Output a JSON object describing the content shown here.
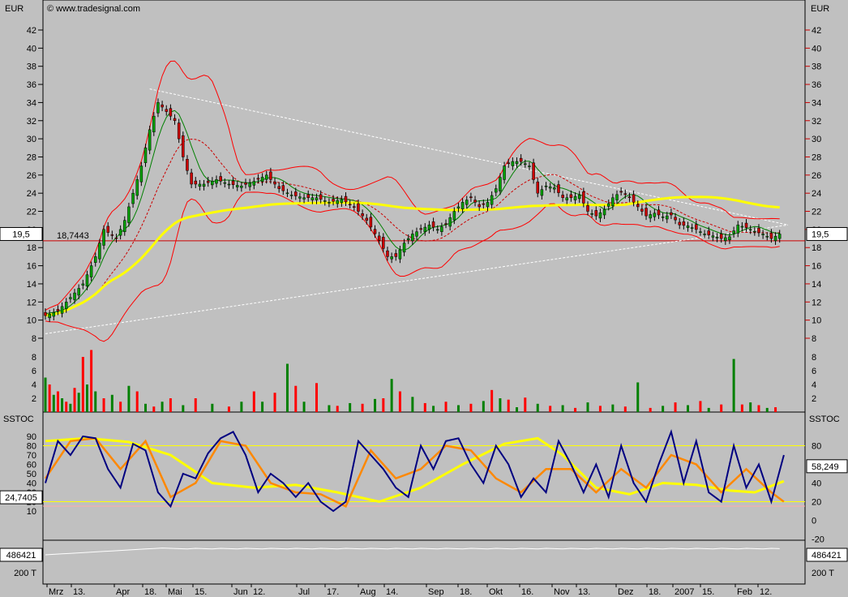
{
  "chart_data": {
    "type": "candlestick",
    "currency": "EUR",
    "watermark": "© www.tradesignal.com",
    "price_axis": {
      "ylim": [
        6,
        44
      ],
      "ticks": [
        8,
        10,
        12,
        14,
        16,
        18,
        20,
        22,
        24,
        26,
        28,
        30,
        32,
        34,
        36,
        38,
        40,
        42
      ],
      "current_label": "19,5",
      "support_label": "18,7443",
      "support_value": 18.7443
    },
    "volume_axis": {
      "ylim": [
        0,
        9
      ],
      "ticks": [
        2,
        4,
        6,
        8
      ]
    },
    "stoch": {
      "name": "SSTOC",
      "ylim": [
        -20,
        100
      ],
      "ticks_left": [
        10,
        20,
        30,
        40,
        50,
        60,
        70,
        80,
        90
      ],
      "ticks_right": [
        0,
        20,
        40,
        60,
        80
      ],
      "ticks_right_neg": "-20",
      "current_label": "58,249",
      "level_label": "24,7405",
      "upper_line": 80,
      "lower_line": 20
    },
    "bottom": {
      "label": "486421",
      "right_label": "486421",
      "axis_label": "200 T",
      "axis_label_right": "200 T",
      "small_label": ""
    },
    "x_labels": [
      "Mrz",
      "13.",
      "Apr",
      "18.",
      "Mai",
      "15.",
      "Jun",
      "12.",
      "Jul",
      "17.",
      "Aug",
      "14.",
      "Sep",
      "18.",
      "Okt",
      "16.",
      "Nov",
      "13.",
      "Dez",
      "18.",
      "2007",
      "15.",
      "Feb",
      "12."
    ],
    "close_path": [
      [
        0,
        10.5
      ],
      [
        3,
        11
      ],
      [
        6,
        12.5
      ],
      [
        9,
        14
      ],
      [
        12,
        17
      ],
      [
        14,
        20
      ],
      [
        17,
        19
      ],
      [
        19,
        21
      ],
      [
        21,
        24
      ],
      [
        23,
        27
      ],
      [
        25,
        31
      ],
      [
        27,
        34
      ],
      [
        29,
        33
      ],
      [
        31,
        32
      ],
      [
        33,
        28
      ],
      [
        35,
        25
      ],
      [
        38,
        25
      ],
      [
        41,
        25.5
      ],
      [
        44,
        25
      ],
      [
        47,
        24.8
      ],
      [
        50,
        25.3
      ],
      [
        53,
        26
      ],
      [
        56,
        24.5
      ],
      [
        59,
        23.8
      ],
      [
        62,
        23.5
      ],
      [
        65,
        23.5
      ],
      [
        68,
        23
      ],
      [
        71,
        23.3
      ],
      [
        74,
        22.5
      ],
      [
        77,
        21
      ],
      [
        80,
        18.8
      ],
      [
        82,
        17
      ],
      [
        84,
        17
      ],
      [
        86,
        18.5
      ],
      [
        88,
        19.5
      ],
      [
        90,
        20
      ],
      [
        92,
        20.5
      ],
      [
        94,
        20
      ],
      [
        96,
        20.6
      ],
      [
        98,
        22
      ],
      [
        100,
        23
      ],
      [
        102,
        23.5
      ],
      [
        104,
        22.5
      ],
      [
        106,
        23
      ],
      [
        108,
        24.5
      ],
      [
        110,
        27
      ],
      [
        112,
        27.5
      ],
      [
        114,
        27.5
      ],
      [
        116,
        27
      ],
      [
        118,
        24
      ],
      [
        120,
        24.8
      ],
      [
        122,
        24.6
      ],
      [
        124,
        23.5
      ],
      [
        126,
        23.5
      ],
      [
        128,
        23.8
      ],
      [
        130,
        22
      ],
      [
        132,
        21.5
      ],
      [
        134,
        22.2
      ],
      [
        136,
        23.5
      ],
      [
        138,
        24.2
      ],
      [
        140,
        23.5
      ],
      [
        142,
        22.5
      ],
      [
        144,
        21.5
      ],
      [
        146,
        21.8
      ],
      [
        148,
        21.4
      ],
      [
        150,
        21.6
      ],
      [
        152,
        20.5
      ],
      [
        154,
        20.4
      ],
      [
        156,
        20
      ],
      [
        158,
        19.5
      ],
      [
        160,
        19.3
      ],
      [
        162,
        19
      ],
      [
        164,
        19.2
      ],
      [
        166,
        20.5
      ],
      [
        168,
        20.2
      ],
      [
        170,
        19.8
      ],
      [
        172,
        19.5
      ],
      [
        174,
        19
      ],
      [
        176,
        19.5
      ]
    ],
    "volume": [
      [
        0,
        5
      ],
      [
        1,
        4
      ],
      [
        2,
        2.5
      ],
      [
        3,
        3
      ],
      [
        4,
        2
      ],
      [
        5,
        1.5
      ],
      [
        6,
        1.2
      ],
      [
        7,
        3.5
      ],
      [
        8,
        2.8
      ],
      [
        9,
        8
      ],
      [
        10,
        4
      ],
      [
        11,
        9
      ],
      [
        12,
        3
      ],
      [
        14,
        2
      ],
      [
        16,
        2.5
      ],
      [
        18,
        1.5
      ],
      [
        20,
        3.8
      ],
      [
        22,
        3
      ],
      [
        24,
        1.2
      ],
      [
        26,
        0.8
      ],
      [
        28,
        1.5
      ],
      [
        30,
        2
      ],
      [
        33,
        1
      ],
      [
        36,
        2
      ],
      [
        40,
        1.2
      ],
      [
        44,
        0.8
      ],
      [
        47,
        1.5
      ],
      [
        50,
        3
      ],
      [
        52,
        1.5
      ],
      [
        55,
        2.8
      ],
      [
        58,
        7
      ],
      [
        60,
        3.8
      ],
      [
        62,
        1.5
      ],
      [
        65,
        4.2
      ],
      [
        68,
        1
      ],
      [
        70,
        0.9
      ],
      [
        73,
        1.3
      ],
      [
        76,
        1.2
      ],
      [
        79,
        1.9
      ],
      [
        81,
        2
      ],
      [
        83,
        4.8
      ],
      [
        85,
        3
      ],
      [
        88,
        2.2
      ],
      [
        91,
        1.3
      ],
      [
        93,
        0.9
      ],
      [
        96,
        1.5
      ],
      [
        99,
        1
      ],
      [
        102,
        1.2
      ],
      [
        105,
        1.6
      ],
      [
        107,
        3.2
      ],
      [
        109,
        2
      ],
      [
        111,
        1.8
      ],
      [
        113,
        0.7
      ],
      [
        115,
        2.1
      ],
      [
        118,
        1.2
      ],
      [
        121,
        0.9
      ],
      [
        124,
        1
      ],
      [
        127,
        0.6
      ],
      [
        130,
        1.4
      ],
      [
        133,
        0.9
      ],
      [
        136,
        1.1
      ],
      [
        139,
        0.8
      ],
      [
        142,
        4.3
      ],
      [
        145,
        0.6
      ],
      [
        148,
        0.9
      ],
      [
        151,
        1.4
      ],
      [
        154,
        1
      ],
      [
        157,
        1.6
      ],
      [
        159,
        0.6
      ],
      [
        162,
        1.1
      ],
      [
        165,
        7.7
      ],
      [
        167,
        1.1
      ],
      [
        169,
        1.4
      ],
      [
        171,
        1
      ],
      [
        173,
        0.6
      ],
      [
        175,
        0.7
      ]
    ],
    "stoch_fast": [
      [
        0,
        40
      ],
      [
        3,
        85
      ],
      [
        6,
        70
      ],
      [
        9,
        90
      ],
      [
        12,
        88
      ],
      [
        15,
        55
      ],
      [
        18,
        35
      ],
      [
        21,
        82
      ],
      [
        24,
        75
      ],
      [
        27,
        30
      ],
      [
        30,
        15
      ],
      [
        33,
        50
      ],
      [
        36,
        45
      ],
      [
        39,
        72
      ],
      [
        42,
        88
      ],
      [
        45,
        95
      ],
      [
        48,
        70
      ],
      [
        51,
        30
      ],
      [
        54,
        50
      ],
      [
        57,
        40
      ],
      [
        60,
        25
      ],
      [
        63,
        40
      ],
      [
        66,
        20
      ],
      [
        69,
        10
      ],
      [
        72,
        20
      ],
      [
        75,
        85
      ],
      [
        78,
        70
      ],
      [
        81,
        55
      ],
      [
        84,
        35
      ],
      [
        87,
        25
      ],
      [
        90,
        80
      ],
      [
        93,
        55
      ],
      [
        96,
        85
      ],
      [
        99,
        88
      ],
      [
        102,
        60
      ],
      [
        105,
        40
      ],
      [
        108,
        80
      ],
      [
        111,
        60
      ],
      [
        114,
        25
      ],
      [
        117,
        45
      ],
      [
        120,
        30
      ],
      [
        123,
        85
      ],
      [
        126,
        60
      ],
      [
        129,
        30
      ],
      [
        132,
        60
      ],
      [
        135,
        25
      ],
      [
        138,
        80
      ],
      [
        141,
        40
      ],
      [
        144,
        20
      ],
      [
        147,
        60
      ],
      [
        150,
        95
      ],
      [
        153,
        40
      ],
      [
        156,
        85
      ],
      [
        159,
        30
      ],
      [
        162,
        20
      ],
      [
        165,
        80
      ],
      [
        168,
        35
      ],
      [
        171,
        60
      ],
      [
        174,
        20
      ],
      [
        177,
        70
      ]
    ],
    "stoch_slow": [
      [
        0,
        45
      ],
      [
        6,
        85
      ],
      [
        12,
        88
      ],
      [
        18,
        55
      ],
      [
        24,
        85
      ],
      [
        30,
        25
      ],
      [
        36,
        40
      ],
      [
        42,
        85
      ],
      [
        48,
        80
      ],
      [
        54,
        40
      ],
      [
        60,
        30
      ],
      [
        66,
        28
      ],
      [
        72,
        15
      ],
      [
        78,
        75
      ],
      [
        84,
        45
      ],
      [
        90,
        55
      ],
      [
        96,
        80
      ],
      [
        102,
        75
      ],
      [
        108,
        45
      ],
      [
        114,
        30
      ],
      [
        120,
        55
      ],
      [
        126,
        55
      ],
      [
        132,
        30
      ],
      [
        138,
        55
      ],
      [
        144,
        35
      ],
      [
        150,
        70
      ],
      [
        156,
        60
      ],
      [
        162,
        30
      ],
      [
        168,
        55
      ],
      [
        174,
        30
      ],
      [
        177,
        20
      ]
    ],
    "stoch_smooth": [
      [
        0,
        85
      ],
      [
        10,
        88
      ],
      [
        20,
        84
      ],
      [
        30,
        70
      ],
      [
        40,
        40
      ],
      [
        50,
        35
      ],
      [
        60,
        38
      ],
      [
        70,
        30
      ],
      [
        80,
        20
      ],
      [
        90,
        35
      ],
      [
        100,
        60
      ],
      [
        110,
        82
      ],
      [
        118,
        88
      ],
      [
        124,
        70
      ],
      [
        132,
        35
      ],
      [
        140,
        28
      ],
      [
        148,
        40
      ],
      [
        156,
        38
      ],
      [
        164,
        32
      ],
      [
        170,
        30
      ],
      [
        177,
        42
      ]
    ]
  }
}
